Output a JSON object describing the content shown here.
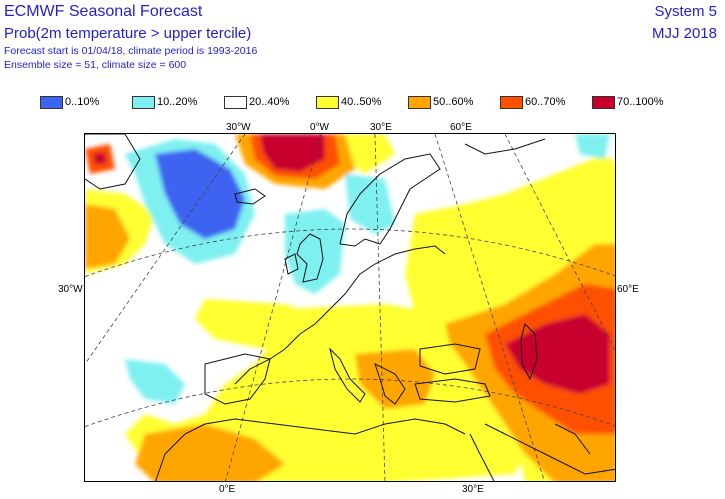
{
  "header": {
    "title": "ECMWF Seasonal Forecast",
    "subtitle": "Prob(2m temperature > upper tercile)",
    "forecast_info": "Forecast start is 01/04/18, climate period is 1993-2016",
    "ensemble_info": "Ensemble size = 51, climate size = 600",
    "system": "System 5",
    "period": "MJJ 2018"
  },
  "legend": [
    {
      "label": "0..10%",
      "color": "#3c64f0"
    },
    {
      "label": "10..20%",
      "color": "#7ff0f0"
    },
    {
      "label": "20..40%",
      "color": "#ffffff"
    },
    {
      "label": "40..50%",
      "color": "#ffff32"
    },
    {
      "label": "50..60%",
      "color": "#ffa500"
    },
    {
      "label": "60..70%",
      "color": "#ff5000"
    },
    {
      "label": "70..100%",
      "color": "#c8002d"
    }
  ],
  "coords": {
    "top_30w": "30°W",
    "top_0w": "0°W",
    "top_30e": "30°E",
    "top_60e": "60°E",
    "left_30w": "30°W",
    "right_60e": "60°E",
    "bottom_0e": "0°E",
    "bottom_30e": "30°E"
  },
  "map": {
    "region": "Europe, North Atlantic and Middle East",
    "colors": {
      "very_low": "#3c64f0",
      "low": "#7ff0f0",
      "mid": "#ffff32",
      "high": "#ffa500",
      "higher": "#ff5000",
      "highest": "#c8002d"
    }
  }
}
